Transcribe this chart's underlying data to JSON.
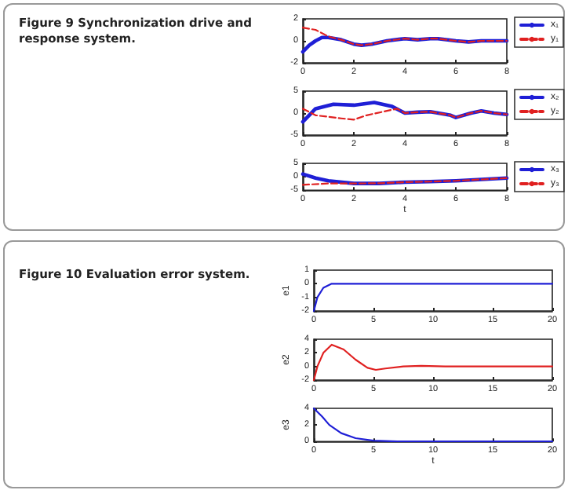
{
  "chart_data": [
    {
      "type": "line",
      "title": "Figure 9  Synchronization drive and response system.",
      "xlim": [
        0,
        8
      ],
      "xticks": [
        0,
        2,
        4,
        6,
        8
      ],
      "ylim": [
        -2,
        2
      ],
      "yticks": [
        -2,
        0,
        2
      ],
      "grid": false,
      "legend": "right",
      "marker": "none",
      "series": [
        {
          "name": "x₁",
          "color": "#1f1fd6",
          "line_style": "solid",
          "x": [
            0,
            0.25,
            0.5,
            0.75,
            1,
            1.5,
            2,
            2.3,
            2.7,
            3.3,
            4,
            4.5,
            5,
            5.3,
            6,
            6.5,
            7,
            7.5,
            8
          ],
          "values": [
            -1,
            -0.4,
            0,
            0.3,
            0.3,
            0.1,
            -0.3,
            -0.4,
            -0.3,
            0,
            0.2,
            0.1,
            0.2,
            0.2,
            0,
            -0.1,
            0,
            0,
            0
          ]
        },
        {
          "name": "y₁",
          "color": "#e02020",
          "line_style": "dashed",
          "x": [
            0,
            0.5,
            1,
            1.5,
            2,
            2.3,
            2.7,
            3.3,
            4,
            4.5,
            5,
            5.3,
            6,
            6.5,
            7,
            7.5,
            8
          ],
          "values": [
            1.2,
            1,
            0.4,
            0.1,
            -0.3,
            -0.4,
            -0.3,
            0,
            0.2,
            0.1,
            0.2,
            0.2,
            0,
            -0.1,
            0,
            0,
            0
          ]
        }
      ]
    },
    {
      "type": "line",
      "xlim": [
        0,
        8
      ],
      "xticks": [
        0,
        2,
        4,
        6,
        8
      ],
      "ylim": [
        -5,
        5
      ],
      "yticks": [
        -5,
        0,
        5
      ],
      "grid": false,
      "legend": "right",
      "marker": "none",
      "series": [
        {
          "name": "x₂",
          "color": "#1f1fd6",
          "line_style": "solid",
          "x": [
            0,
            0.5,
            1.2,
            2,
            2.8,
            3.5,
            4,
            4.5,
            5,
            5.8,
            6,
            6.6,
            7,
            7.5,
            8
          ],
          "values": [
            -2,
            1,
            2,
            1.8,
            2.4,
            1.5,
            0,
            0.2,
            0.3,
            -0.5,
            -1,
            0,
            0.5,
            0,
            -0.3
          ]
        },
        {
          "name": "y₂",
          "color": "#e02020",
          "line_style": "dashed",
          "x": [
            0,
            0.5,
            1.5,
            2,
            2.5,
            3.3,
            3.7,
            4,
            4.5,
            5,
            5.8,
            6,
            6.6,
            7,
            7.5,
            8
          ],
          "values": [
            1,
            -0.5,
            -1.2,
            -1.5,
            -0.5,
            0.5,
            1,
            0,
            0.2,
            0.3,
            -0.5,
            -1,
            0,
            0.5,
            0,
            -0.3
          ]
        }
      ]
    },
    {
      "type": "line",
      "xlabel": "t",
      "xlim": [
        0,
        8
      ],
      "xticks": [
        0,
        2,
        4,
        6,
        8
      ],
      "ylim": [
        -5,
        5
      ],
      "yticks": [
        -5,
        0,
        5
      ],
      "grid": false,
      "legend": "right",
      "marker": "none",
      "series": [
        {
          "name": "x₃",
          "color": "#1f1fd6",
          "line_style": "solid",
          "x": [
            0,
            0.5,
            1,
            2,
            3,
            4,
            5,
            6,
            7,
            8
          ],
          "values": [
            1,
            -0.5,
            -1.5,
            -2.5,
            -2.5,
            -2,
            -1.8,
            -1.5,
            -1,
            -0.5
          ]
        },
        {
          "name": "y₃",
          "color": "#e02020",
          "line_style": "dashed",
          "x": [
            0,
            1,
            2,
            3,
            4,
            5,
            6,
            7,
            8
          ],
          "values": [
            -3,
            -2.5,
            -2.5,
            -2.4,
            -2,
            -1.8,
            -1.5,
            -1,
            -0.5
          ]
        }
      ]
    },
    {
      "type": "line",
      "title": "Figure 10  Evaluation error system.",
      "ylabel": "e1",
      "xlim": [
        0,
        20
      ],
      "xticks": [
        0,
        5,
        10,
        15,
        20
      ],
      "ylim": [
        -2,
        1
      ],
      "yticks": [
        -2,
        -1,
        0,
        1
      ],
      "grid": false,
      "marker": "none",
      "series": [
        {
          "color": "#1f1fd6",
          "line_style": "solid",
          "x": [
            0,
            0.3,
            0.8,
            1.5,
            2.5,
            20
          ],
          "values": [
            -2,
            -1,
            -0.3,
            0,
            0,
            0
          ]
        }
      ]
    },
    {
      "type": "line",
      "ylabel": "e2",
      "xlim": [
        0,
        20
      ],
      "xticks": [
        0,
        5,
        10,
        15,
        20
      ],
      "ylim": [
        -2,
        4
      ],
      "yticks": [
        -2,
        0,
        2,
        4
      ],
      "grid": false,
      "marker": "none",
      "series": [
        {
          "color": "#e02020",
          "line_style": "solid",
          "x": [
            0,
            0.3,
            0.8,
            1.5,
            2.5,
            3.5,
            4.5,
            5.2,
            6,
            7.5,
            9,
            11,
            20
          ],
          "values": [
            -2,
            0,
            2,
            3.2,
            2.5,
            1,
            -0.2,
            -0.5,
            -0.3,
            0,
            0.1,
            0,
            0
          ]
        }
      ]
    },
    {
      "type": "line",
      "xlabel": "t",
      "ylabel": "e3",
      "xlim": [
        0,
        20
      ],
      "xticks": [
        0,
        5,
        10,
        15,
        20
      ],
      "ylim": [
        0,
        4
      ],
      "yticks": [
        0,
        2,
        4
      ],
      "grid": false,
      "marker": "none",
      "series": [
        {
          "color": "#1f1fd6",
          "line_style": "solid",
          "x": [
            0,
            0.7,
            1.3,
            2.3,
            3.5,
            5,
            7,
            20
          ],
          "values": [
            4,
            3,
            2,
            1,
            0.4,
            0.1,
            0,
            0
          ]
        }
      ]
    }
  ]
}
